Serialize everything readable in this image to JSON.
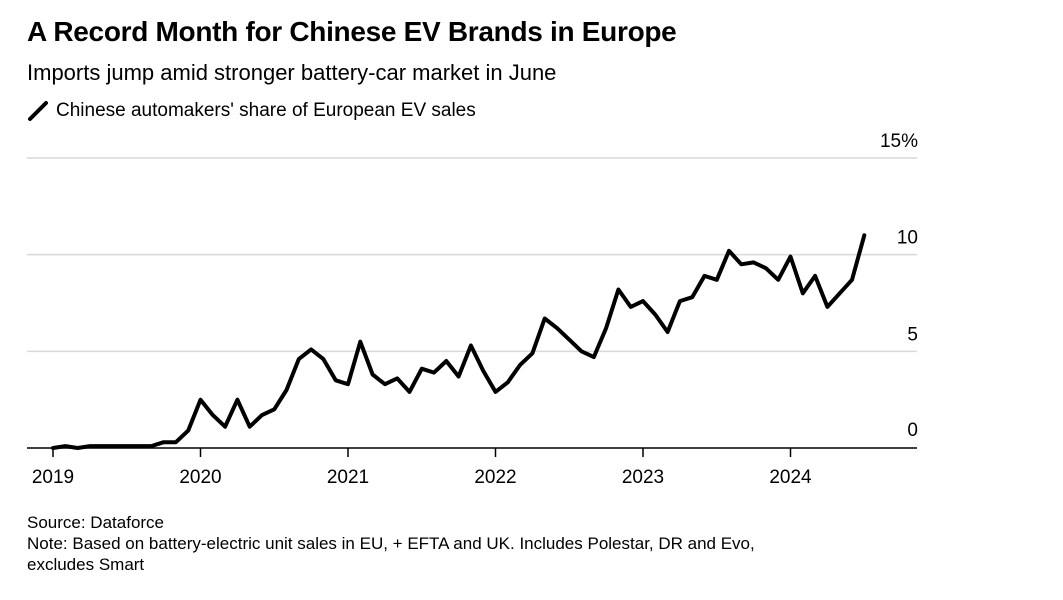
{
  "chart_data": {
    "type": "line",
    "title": "A Record Month for Chinese EV Brands in Europe",
    "subtitle": "Imports jump amid stronger battery-car market in June",
    "series": [
      {
        "name": "Chinese automakers' share of European EV sales",
        "color": "#000000",
        "values": [
          0.0,
          0.1,
          0.0,
          0.1,
          0.1,
          0.1,
          0.1,
          0.1,
          0.1,
          0.3,
          0.3,
          0.9,
          2.5,
          1.7,
          1.1,
          2.5,
          1.1,
          1.7,
          2.0,
          3.0,
          4.6,
          5.1,
          4.6,
          3.5,
          3.3,
          5.5,
          3.8,
          3.3,
          3.6,
          2.9,
          4.1,
          3.9,
          4.5,
          3.7,
          5.3,
          4.0,
          2.9,
          3.4,
          4.3,
          4.9,
          6.7,
          6.2,
          5.6,
          5.0,
          4.7,
          6.2,
          8.2,
          7.3,
          7.6,
          6.9,
          6.0,
          7.6,
          7.8,
          8.9,
          8.7,
          10.2,
          9.5,
          9.6,
          9.3,
          8.7,
          9.9,
          8.0,
          8.9,
          7.3,
          8.0,
          8.7,
          11.0
        ]
      }
    ],
    "x_start": "2019-01",
    "xticks": [
      "2019",
      "2020",
      "2021",
      "2022",
      "2023",
      "2024"
    ],
    "yticks": [
      "0",
      "5",
      "10",
      "15%"
    ],
    "ytick_values": [
      0,
      5,
      10,
      15
    ],
    "ylim": [
      0,
      15
    ],
    "xlabel": "",
    "ylabel": "",
    "grid": true,
    "legend_position": "top-left"
  },
  "footer": {
    "source": "Source: Dataforce",
    "note_line1": "Note: Based on battery-electric unit sales in EU, + EFTA and UK. Includes Polestar, DR and Evo,",
    "note_line2": "excludes Smart"
  }
}
